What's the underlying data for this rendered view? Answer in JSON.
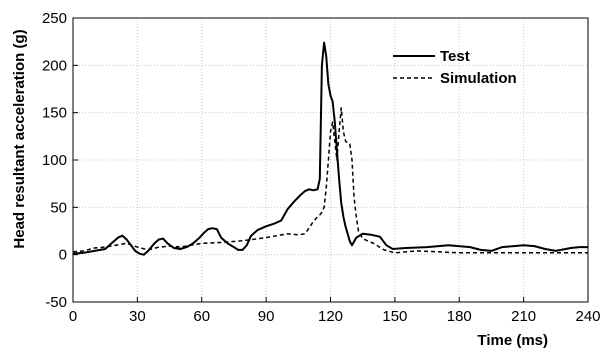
{
  "chart_data": {
    "type": "line",
    "title": "",
    "xlabel": "Time (ms)",
    "ylabel": "Head resultant acceleration (g)",
    "xlim": [
      0,
      240
    ],
    "ylim": [
      -50,
      250
    ],
    "xticks": [
      "0",
      "30",
      "60",
      "90",
      "120",
      "150",
      "180",
      "210",
      "240"
    ],
    "yticks": [
      "-50",
      "0",
      "50",
      "100",
      "150",
      "200",
      "250"
    ],
    "grid": true,
    "legend_position": "top-right",
    "series": [
      {
        "name": "Test",
        "style": "solid",
        "color": "#000000",
        "points": [
          [
            0,
            1
          ],
          [
            5,
            2
          ],
          [
            10,
            4
          ],
          [
            15,
            6
          ],
          [
            18,
            12
          ],
          [
            21,
            18
          ],
          [
            23,
            20
          ],
          [
            25,
            16
          ],
          [
            27,
            10
          ],
          [
            29,
            4
          ],
          [
            31,
            1
          ],
          [
            33,
            0
          ],
          [
            35,
            4
          ],
          [
            38,
            12
          ],
          [
            40,
            16
          ],
          [
            42,
            17
          ],
          [
            44,
            12
          ],
          [
            47,
            7
          ],
          [
            50,
            6
          ],
          [
            53,
            8
          ],
          [
            56,
            12
          ],
          [
            59,
            18
          ],
          [
            61,
            23
          ],
          [
            63,
            27
          ],
          [
            65,
            28
          ],
          [
            67,
            27
          ],
          [
            69,
            18
          ],
          [
            72,
            12
          ],
          [
            75,
            8
          ],
          [
            77,
            5
          ],
          [
            79,
            5
          ],
          [
            81,
            10
          ],
          [
            83,
            20
          ],
          [
            86,
            26
          ],
          [
            90,
            30
          ],
          [
            94,
            33
          ],
          [
            97,
            36
          ],
          [
            100,
            48
          ],
          [
            103,
            56
          ],
          [
            106,
            63
          ],
          [
            108,
            67
          ],
          [
            110,
            69
          ],
          [
            112,
            68
          ],
          [
            114,
            69
          ],
          [
            115,
            80
          ],
          [
            116,
            200
          ],
          [
            117,
            224
          ],
          [
            118,
            210
          ],
          [
            119,
            180
          ],
          [
            120,
            168
          ],
          [
            121,
            162
          ],
          [
            122,
            140
          ],
          [
            123,
            110
          ],
          [
            124,
            80
          ],
          [
            125,
            55
          ],
          [
            126,
            40
          ],
          [
            127,
            30
          ],
          [
            128,
            22
          ],
          [
            129,
            14
          ],
          [
            130,
            10
          ],
          [
            132,
            18
          ],
          [
            135,
            22
          ],
          [
            139,
            21
          ],
          [
            143,
            19
          ],
          [
            146,
            10
          ],
          [
            149,
            6
          ],
          [
            155,
            7
          ],
          [
            165,
            8
          ],
          [
            175,
            10
          ],
          [
            185,
            8
          ],
          [
            190,
            5
          ],
          [
            195,
            4
          ],
          [
            200,
            8
          ],
          [
            210,
            10
          ],
          [
            215,
            9
          ],
          [
            220,
            6
          ],
          [
            225,
            4
          ],
          [
            232,
            7
          ],
          [
            236,
            8
          ],
          [
            240,
            8
          ]
        ]
      },
      {
        "name": "Simulation",
        "style": "dashed",
        "color": "#000000",
        "points": [
          [
            0,
            3
          ],
          [
            5,
            4
          ],
          [
            10,
            7
          ],
          [
            15,
            8
          ],
          [
            20,
            10
          ],
          [
            25,
            12
          ],
          [
            30,
            8
          ],
          [
            35,
            5
          ],
          [
            40,
            8
          ],
          [
            45,
            9
          ],
          [
            50,
            8
          ],
          [
            55,
            10
          ],
          [
            60,
            12
          ],
          [
            70,
            13
          ],
          [
            80,
            15
          ],
          [
            90,
            18
          ],
          [
            100,
            22
          ],
          [
            105,
            21
          ],
          [
            108,
            22
          ],
          [
            110,
            28
          ],
          [
            112,
            35
          ],
          [
            114,
            40
          ],
          [
            115,
            42
          ],
          [
            116,
            45
          ],
          [
            117,
            50
          ],
          [
            118,
            70
          ],
          [
            119,
            100
          ],
          [
            120,
            130
          ],
          [
            121,
            140
          ],
          [
            122,
            120
          ],
          [
            123,
            100
          ],
          [
            124,
            130
          ],
          [
            125,
            155
          ],
          [
            126,
            130
          ],
          [
            127,
            120
          ],
          [
            128,
            118
          ],
          [
            129,
            117
          ],
          [
            130,
            100
          ],
          [
            131,
            60
          ],
          [
            132,
            40
          ],
          [
            133,
            25
          ],
          [
            135,
            17
          ],
          [
            140,
            12
          ],
          [
            145,
            5
          ],
          [
            150,
            2
          ],
          [
            160,
            4
          ],
          [
            170,
            3
          ],
          [
            180,
            2
          ],
          [
            190,
            2
          ],
          [
            200,
            2
          ],
          [
            220,
            2
          ],
          [
            240,
            2
          ]
        ]
      }
    ]
  }
}
